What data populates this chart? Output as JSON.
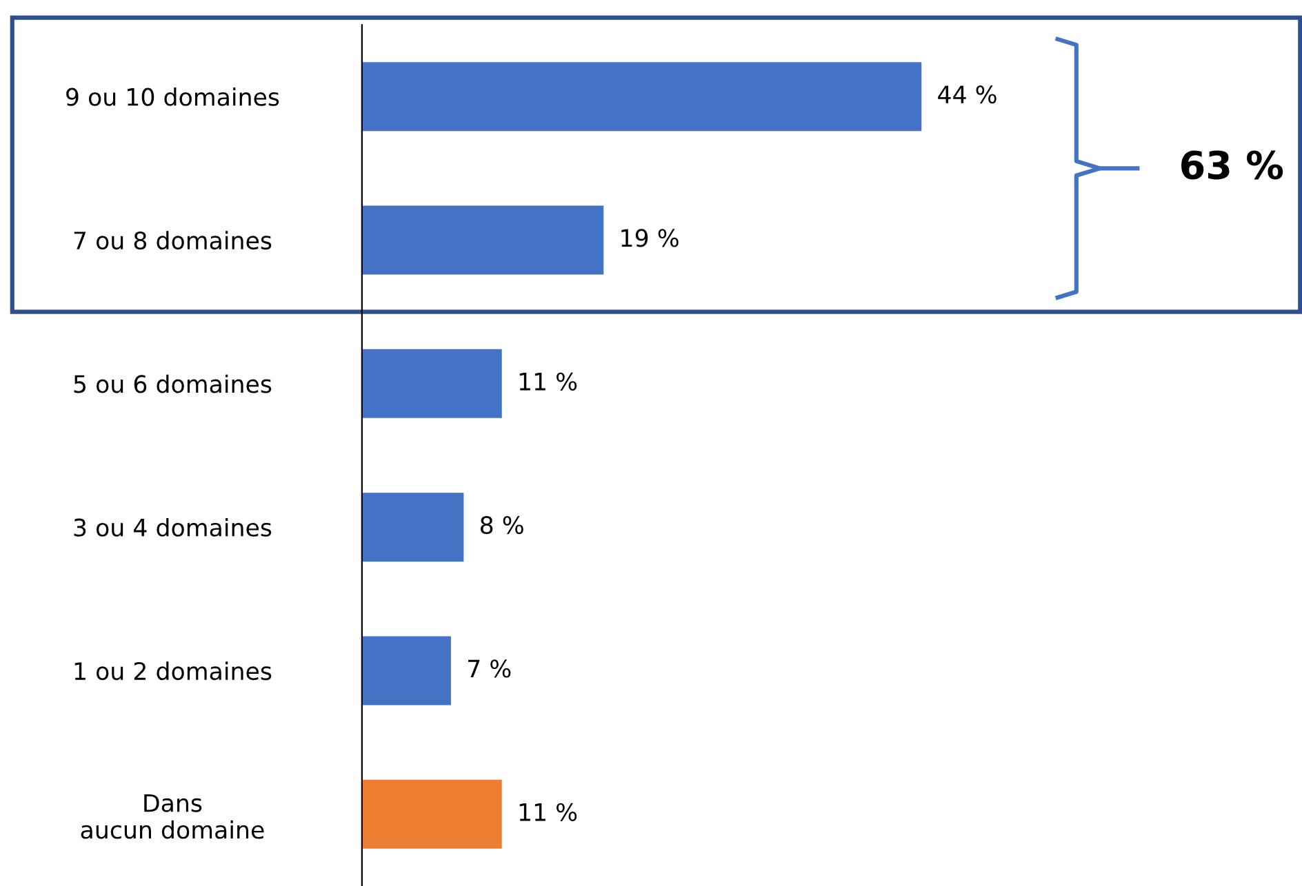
{
  "chart_data": {
    "type": "bar",
    "orientation": "horizontal",
    "categories": [
      "9 ou 10 domaines",
      "7 ou 8 domaines",
      "5 ou 6 domaines",
      "3 ou 4 domaines",
      "1 ou 2 domaines",
      "Dans\naucun domaine"
    ],
    "values": [
      44,
      19,
      11,
      8,
      7,
      11
    ],
    "colors": [
      "#4472c4",
      "#4472c4",
      "#4472c4",
      "#4472c4",
      "#4472c4",
      "#ed7d31"
    ],
    "value_labels": [
      "44 %",
      "19 %",
      "11 %",
      "8 %",
      "7 %",
      "11 %"
    ],
    "annotations": [
      "63 %"
    ],
    "grid": false,
    "legend": false
  }
}
